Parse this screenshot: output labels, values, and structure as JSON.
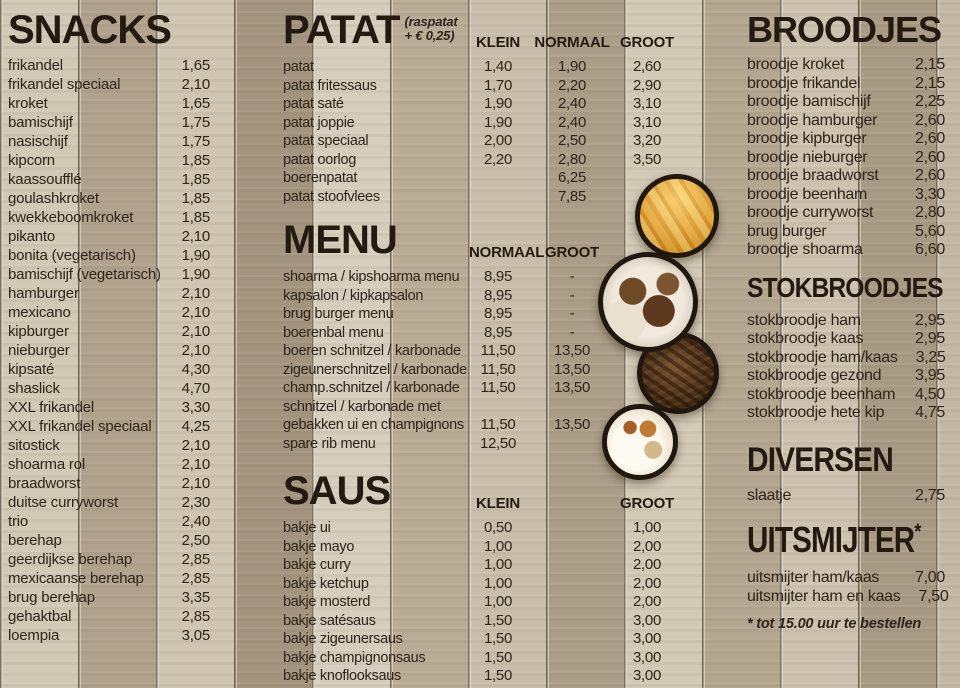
{
  "colors": {
    "wood_light": "#d5ccbb",
    "wood_dark": "#a89b85",
    "plank_seam": "#3f372a",
    "text": "#2f251a",
    "title": "#241a0f"
  },
  "photos": [
    "fries",
    "pita-wraps",
    "shoarma-meat",
    "sauce-bowl"
  ],
  "sections": {
    "snacks": {
      "title": "SNACKS",
      "items": [
        {
          "name": "frikandel",
          "price": "1,65"
        },
        {
          "name": "frikandel speciaal",
          "price": "2,10"
        },
        {
          "name": "kroket",
          "price": "1,65"
        },
        {
          "name": "bamischijf",
          "price": "1,75"
        },
        {
          "name": "nasischijf",
          "price": "1,75"
        },
        {
          "name": "kipcorn",
          "price": "1,85"
        },
        {
          "name": "kaassoufflé",
          "price": "1,85"
        },
        {
          "name": "goulashkroket",
          "price": "1,85"
        },
        {
          "name": "kwekkeboomkroket",
          "price": "1,85"
        },
        {
          "name": "pikanto",
          "price": "2,10"
        },
        {
          "name": "bonita (vegetarisch)",
          "price": "1,90"
        },
        {
          "name": "bamischijf (vegetarisch)",
          "price": "1,90"
        },
        {
          "name": "hamburger",
          "price": "2,10"
        },
        {
          "name": "mexicano",
          "price": "2,10"
        },
        {
          "name": "kipburger",
          "price": "2,10"
        },
        {
          "name": "nieburger",
          "price": "2,10"
        },
        {
          "name": "kipsaté",
          "price": "4,30"
        },
        {
          "name": "shaslick",
          "price": "4,70"
        },
        {
          "name": "XXL frikandel",
          "price": "3,30"
        },
        {
          "name": "XXL frikandel speciaal",
          "price": "4,25"
        },
        {
          "name": "sitostick",
          "price": "2,10"
        },
        {
          "name": "shoarma rol",
          "price": "2,10"
        },
        {
          "name": "braadworst",
          "price": "2,10"
        },
        {
          "name": "duitse curryworst",
          "price": "2,30"
        },
        {
          "name": "trio",
          "price": "2,40"
        },
        {
          "name": "berehap",
          "price": "2,50"
        },
        {
          "name": "geerdijkse berehap",
          "price": "2,85"
        },
        {
          "name": "mexicaanse berehap",
          "price": "2,85"
        },
        {
          "name": "brug berehap",
          "price": "3,35"
        },
        {
          "name": "gehaktbal",
          "price": "2,85"
        },
        {
          "name": "loempia",
          "price": "3,05"
        }
      ]
    },
    "patat": {
      "title": "PATAT",
      "note_line1": "(raspatat",
      "note_line2": "+ € 0,25)",
      "columns": [
        "KLEIN",
        "NORMAAL",
        "GROOT"
      ],
      "items": [
        {
          "name": "patat",
          "klein": "1,40",
          "normaal": "1,90",
          "groot": "2,60"
        },
        {
          "name": "patat fritessaus",
          "klein": "1,70",
          "normaal": "2,20",
          "groot": "2,90"
        },
        {
          "name": "patat saté",
          "klein": "1,90",
          "normaal": "2,40",
          "groot": "3,10"
        },
        {
          "name": "patat joppie",
          "klein": "1,90",
          "normaal": "2,40",
          "groot": "3,10"
        },
        {
          "name": "patat speciaal",
          "klein": "2,00",
          "normaal": "2,50",
          "groot": "3,20"
        },
        {
          "name": "patat oorlog",
          "klein": "2,20",
          "normaal": "2,80",
          "groot": "3,50"
        },
        {
          "name": "boerenpatat",
          "klein": "",
          "normaal": "6,25",
          "groot": ""
        },
        {
          "name": "patat stoofvlees",
          "klein": "",
          "normaal": "7,85",
          "groot": ""
        }
      ]
    },
    "menu": {
      "title": "MENU",
      "columns": [
        "NORMAAL",
        "GROOT"
      ],
      "items": [
        {
          "name": "shoarma / kipshoarma menu",
          "normaal": "8,95",
          "groot": "-"
        },
        {
          "name": "kapsalon / kipkapsalon",
          "normaal": "8,95",
          "groot": "-"
        },
        {
          "name": "brug burger menu",
          "normaal": "8,95",
          "groot": "-"
        },
        {
          "name": "boerenbal menu",
          "normaal": "8,95",
          "groot": "-"
        },
        {
          "name": "boeren schnitzel / karbonade",
          "normaal": "11,50",
          "groot": "13,50"
        },
        {
          "name": "zigeunerschnitzel / karbonade",
          "normaal": "11,50",
          "groot": "13,50"
        },
        {
          "name": "champ.schnitzel / karbonade",
          "normaal": "11,50",
          "groot": "13,50"
        },
        {
          "name": "schnitzel / karbonade met",
          "normaal": "",
          "groot": ""
        },
        {
          "name": "gebakken ui en champignons",
          "normaal": "11,50",
          "groot": "13,50"
        },
        {
          "name": "spare rib menu",
          "normaal": "12,50",
          "groot": ""
        }
      ]
    },
    "saus": {
      "title": "SAUS",
      "columns": [
        "KLEIN",
        "GROOT"
      ],
      "items": [
        {
          "name": "bakje ui",
          "klein": "0,50",
          "groot": "1,00"
        },
        {
          "name": "bakje mayo",
          "klein": "1,00",
          "groot": "2,00"
        },
        {
          "name": "bakje curry",
          "klein": "1,00",
          "groot": "2,00"
        },
        {
          "name": "bakje ketchup",
          "klein": "1,00",
          "groot": "2,00"
        },
        {
          "name": "bakje mosterd",
          "klein": "1,00",
          "groot": "2,00"
        },
        {
          "name": "bakje satésaus",
          "klein": "1,50",
          "groot": "3,00"
        },
        {
          "name": "bakje zigeunersaus",
          "klein": "1,50",
          "groot": "3,00"
        },
        {
          "name": "bakje champignonsaus",
          "klein": "1,50",
          "groot": "3,00"
        },
        {
          "name": "bakje knoflooksaus",
          "klein": "1,50",
          "groot": "3,00"
        }
      ]
    },
    "broodjes": {
      "title": "BROODJES",
      "items": [
        {
          "name": "broodje kroket",
          "price": "2,15"
        },
        {
          "name": "broodje frikandel",
          "price": "2,15"
        },
        {
          "name": "broodje bamischijf",
          "price": "2,25"
        },
        {
          "name": "broodje hamburger",
          "price": "2,60"
        },
        {
          "name": "broodje kipburger",
          "price": "2,60"
        },
        {
          "name": "broodje nieburger",
          "price": "2,60"
        },
        {
          "name": "broodje braadworst",
          "price": "2,60"
        },
        {
          "name": "broodje beenham",
          "price": "3,30"
        },
        {
          "name": "broodje curryworst",
          "price": "2,80"
        },
        {
          "name": "brug burger",
          "price": "5,60"
        },
        {
          "name": "broodje shoarma",
          "price": "6,60"
        }
      ]
    },
    "stokbroodjes": {
      "title": "STOKBROODJES",
      "items": [
        {
          "name": "stokbroodje ham",
          "price": "2,95"
        },
        {
          "name": "stokbroodje kaas",
          "price": "2,95"
        },
        {
          "name": "stokbroodje ham/kaas",
          "price": "3,25"
        },
        {
          "name": "stokbroodje gezond",
          "price": "3,95"
        },
        {
          "name": "stokbroodje beenham",
          "price": "4,50"
        },
        {
          "name": "stokbroodje hete kip",
          "price": "4,75"
        }
      ]
    },
    "diversen": {
      "title": "DIVERSEN",
      "items": [
        {
          "name": "slaatje",
          "price": "2,75"
        }
      ]
    },
    "uitsmijter": {
      "title": "UITSMIJTER",
      "asterisk": "*",
      "items": [
        {
          "name": "uitsmijter ham/kaas",
          "price": "7,00"
        },
        {
          "name": "uitsmijter ham en kaas",
          "price": "7,50"
        }
      ],
      "footnote": "* tot 15.00 uur te bestellen"
    }
  }
}
